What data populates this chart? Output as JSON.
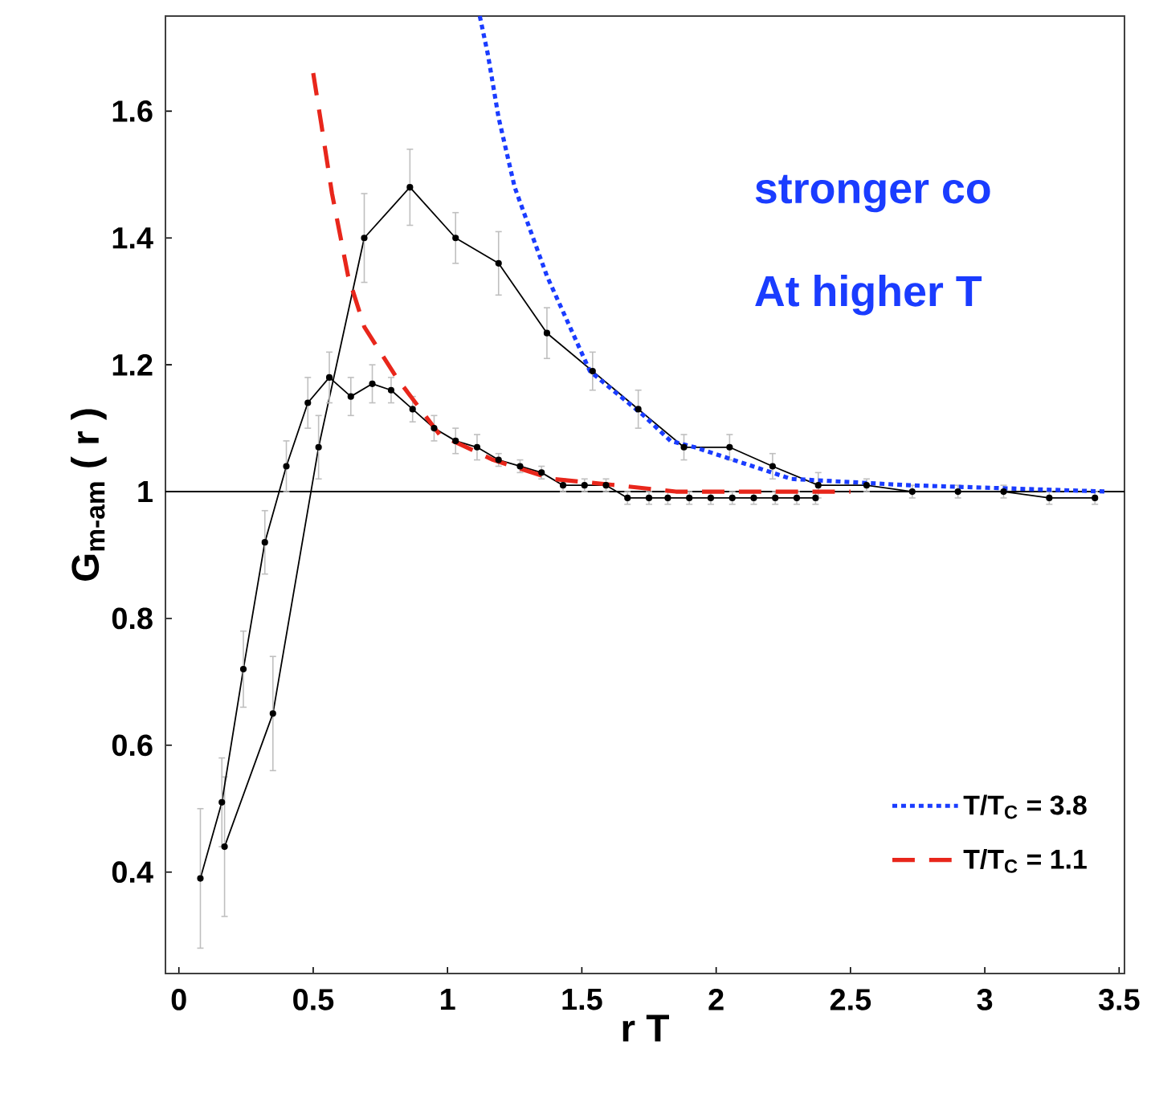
{
  "chart_data": {
    "type": "line",
    "xlabel": "r T",
    "ylabel": "G$_{m-am}$ ( r )",
    "annotations": [
      "stronger co",
      "At higher T"
    ],
    "xlim": [
      -0.05,
      3.52
    ],
    "ylim": [
      0.24,
      1.75
    ],
    "xticks": [
      0,
      0.5,
      1,
      1.5,
      2,
      2.5,
      3,
      3.5
    ],
    "yticks": [
      0.4,
      0.6,
      0.8,
      1,
      1.2,
      1.4,
      1.6
    ],
    "legend": "bottom right",
    "ref_lines": [
      {
        "axis": "y",
        "value": 1,
        "color": "#000000",
        "line_style": "solid"
      }
    ],
    "series": [
      {
        "color": "#000000",
        "marker": "circle",
        "line_style": "solid",
        "x": [
          0.17,
          0.35,
          0.52,
          0.69,
          0.86,
          1.03,
          1.19,
          1.37,
          1.54,
          1.71,
          1.88,
          2.05,
          2.21,
          2.38,
          2.56,
          2.73,
          2.9,
          3.07,
          3.24,
          3.41
        ],
        "values": [
          0.44,
          0.65,
          1.07,
          1.4,
          1.48,
          1.4,
          1.36,
          1.25,
          1.19,
          1.13,
          1.07,
          1.07,
          1.04,
          1.01,
          1.01,
          1.0,
          1.0,
          1.0,
          0.99,
          0.99
        ],
        "errors": [
          0.11,
          0.09,
          0.05,
          0.07,
          0.06,
          0.04,
          0.05,
          0.04,
          0.03,
          0.03,
          0.02,
          0.02,
          0.02,
          0.02,
          0.01,
          0.01,
          0.01,
          0.01,
          0.01,
          0.01
        ]
      },
      {
        "color": "#000000",
        "marker": "circle",
        "line_style": "solid",
        "x": [
          0.08,
          0.16,
          0.24,
          0.32,
          0.4,
          0.48,
          0.56,
          0.64,
          0.72,
          0.79,
          0.87,
          0.95,
          1.03,
          1.11,
          1.19,
          1.27,
          1.35,
          1.43,
          1.51,
          1.59,
          1.67,
          1.75,
          1.82,
          1.9,
          1.98,
          2.06,
          2.14,
          2.22,
          2.3,
          2.37
        ],
        "values": [
          0.39,
          0.51,
          0.72,
          0.92,
          1.04,
          1.14,
          1.18,
          1.15,
          1.17,
          1.16,
          1.13,
          1.1,
          1.08,
          1.07,
          1.05,
          1.04,
          1.03,
          1.01,
          1.01,
          1.01,
          0.99,
          0.99,
          0.99,
          0.99,
          0.99,
          0.99,
          0.99,
          0.99,
          0.99,
          0.99
        ],
        "errors": [
          0.11,
          0.07,
          0.06,
          0.05,
          0.04,
          0.04,
          0.04,
          0.03,
          0.03,
          0.02,
          0.02,
          0.02,
          0.02,
          0.02,
          0.01,
          0.01,
          0.01,
          0.01,
          0.01,
          0.01,
          0.01,
          0.01,
          0.01,
          0.01,
          0.01,
          0.01,
          0.01,
          0.01,
          0.01,
          0.01
        ]
      },
      {
        "name": "T/T$_{C}$ = 3.8",
        "color": "#1a3cff",
        "marker": "none",
        "line_style": "dotted",
        "x": [
          1.12,
          1.15,
          1.19,
          1.25,
          1.37,
          1.53,
          1.73,
          1.83,
          1.92,
          2.28,
          2.72,
          3.46
        ],
        "values": [
          1.75,
          1.69,
          1.59,
          1.48,
          1.34,
          1.19,
          1.12,
          1.08,
          1.07,
          1.02,
          1.01,
          1.0
        ]
      },
      {
        "name": "T/T$_{C}$ = 1.1",
        "color": "#e8261b",
        "marker": "none",
        "line_style": "dashed",
        "x": [
          0.5,
          0.53,
          0.57,
          0.63,
          0.69,
          0.81,
          0.97,
          1.17,
          1.39,
          1.63,
          1.85,
          2.29,
          2.5
        ],
        "values": [
          1.66,
          1.58,
          1.47,
          1.34,
          1.26,
          1.18,
          1.09,
          1.05,
          1.02,
          1.01,
          1.0,
          1.0,
          1.0
        ]
      }
    ]
  }
}
